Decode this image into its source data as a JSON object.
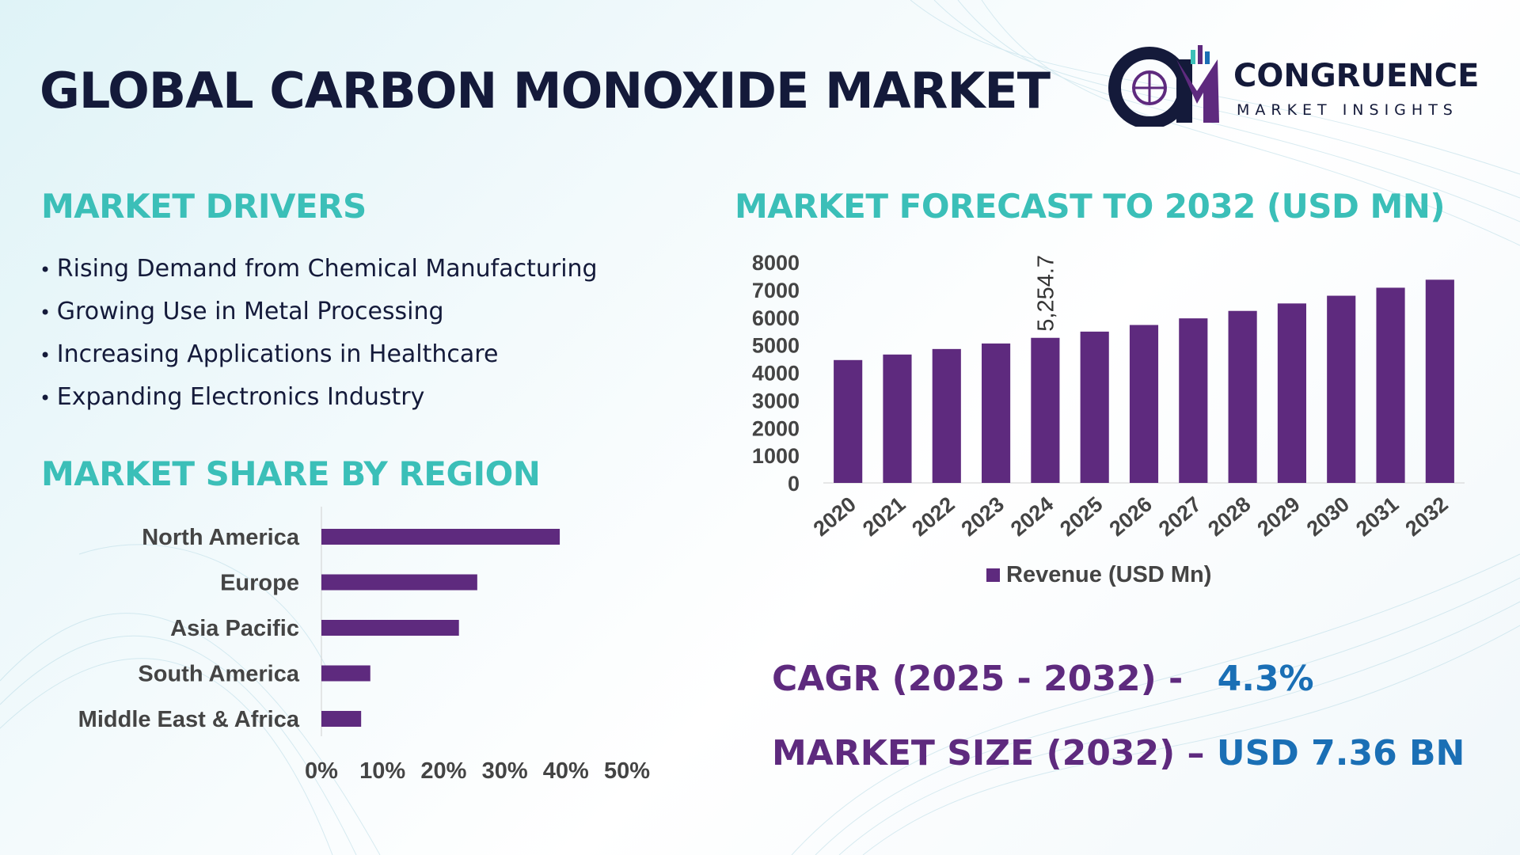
{
  "page_title": "GLOBAL CARBON MONOXIDE MARKET",
  "logo": {
    "name": "CONGRUENCE",
    "subtitle": "MARKET INSIGHTS",
    "initials": "CM"
  },
  "colors": {
    "bar": "#5e2a7e",
    "heading": "#3bbfb8",
    "title": "#141a3a",
    "accent_value": "#1a6fb5",
    "axis_text": "#444444"
  },
  "drivers": {
    "heading": "MARKET DRIVERS",
    "items": [
      "Rising Demand from Chemical Manufacturing",
      "Growing Use in Metal Processing",
      "Increasing Applications in Healthcare",
      "Expanding Electronics Industry"
    ]
  },
  "region": {
    "heading": "MARKET SHARE BY REGION"
  },
  "forecast": {
    "heading": "MARKET FORECAST TO 2032 (USD MN)"
  },
  "stats": {
    "cagr_label": "CAGR (2025 - 2032) -",
    "cagr_value": "4.3%",
    "size_label": "MARKET SIZE (2032) –",
    "size_value": "USD 7.36 BN"
  },
  "chart_data": [
    {
      "type": "bar",
      "orientation": "vertical",
      "categories": [
        "2020",
        "2021",
        "2022",
        "2023",
        "2024",
        "2025",
        "2026",
        "2027",
        "2028",
        "2029",
        "2030",
        "2031",
        "2032"
      ],
      "series": [
        {
          "name": "Revenue (USD Mn)",
          "values": [
            4450,
            4650,
            4850,
            5050,
            5254.7,
            5480,
            5720,
            5960,
            6230,
            6500,
            6780,
            7070,
            7360
          ]
        }
      ],
      "data_labels": [
        {
          "index": 4,
          "text": "5,254.7"
        }
      ],
      "yticks": [
        0,
        1000,
        2000,
        3000,
        4000,
        5000,
        6000,
        7000,
        8000
      ],
      "ylim": [
        0,
        8000
      ],
      "legend": "bottom",
      "grid": false
    },
    {
      "type": "bar",
      "orientation": "horizontal",
      "categories": [
        "North America",
        "Europe",
        "Asia Pacific",
        "South America",
        "Middle East & Africa"
      ],
      "values": [
        39,
        25.5,
        22.5,
        8,
        6.5
      ],
      "xticks": [
        "0%",
        "10%",
        "20%",
        "30%",
        "40%",
        "50%"
      ],
      "xlim": [
        0,
        50
      ],
      "grid": false
    }
  ]
}
